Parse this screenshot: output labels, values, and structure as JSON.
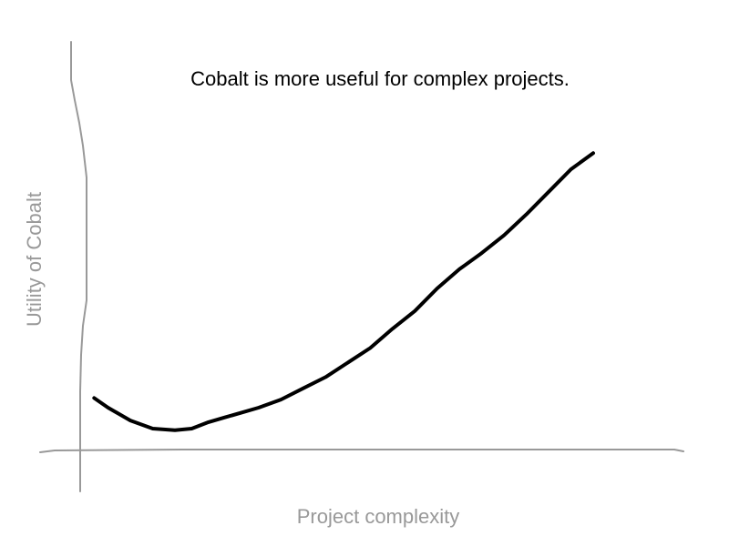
{
  "chart_data": {
    "type": "line",
    "title": "Cobalt is more useful for complex projects.",
    "xlabel": "Project complexity",
    "ylabel": "Utility of Cobalt",
    "grid": false,
    "legend": "none",
    "xlim": [
      0,
      10
    ],
    "ylim": [
      0,
      10
    ],
    "series": [
      {
        "x": [
          0.25,
          0.5,
          0.9,
          1.3,
          1.7,
          2.0,
          2.3,
          2.6,
          2.9,
          3.2,
          3.6,
          4.0,
          4.4,
          4.8,
          5.2,
          5.6,
          6.0,
          6.4,
          6.8,
          7.2,
          7.6,
          8.0,
          8.4,
          8.8,
          9.2
        ],
        "values": [
          1.6,
          1.3,
          0.9,
          0.65,
          0.6,
          0.65,
          0.85,
          1.0,
          1.15,
          1.3,
          1.55,
          1.9,
          2.25,
          2.7,
          3.15,
          3.75,
          4.3,
          5.0,
          5.6,
          6.1,
          6.65,
          7.3,
          8.0,
          8.7,
          9.2
        ]
      }
    ],
    "colors": {
      "series": "#000000",
      "axes": "#999999",
      "title": "#000000"
    }
  }
}
